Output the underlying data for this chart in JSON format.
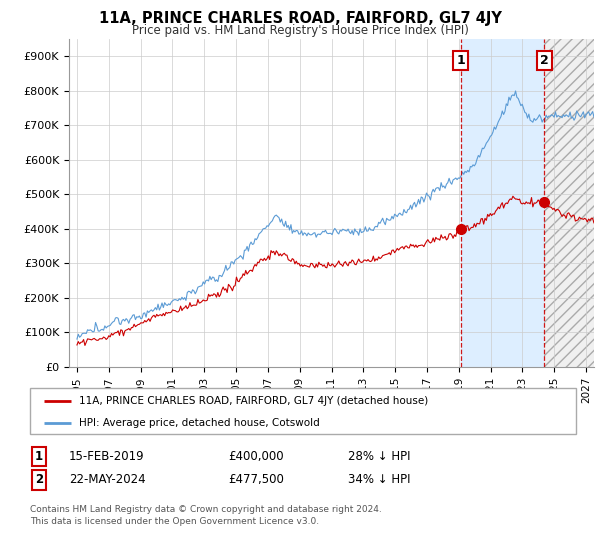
{
  "title": "11A, PRINCE CHARLES ROAD, FAIRFORD, GL7 4JY",
  "subtitle": "Price paid vs. HM Land Registry's House Price Index (HPI)",
  "ylabel_ticks": [
    "£0",
    "£100K",
    "£200K",
    "£300K",
    "£400K",
    "£500K",
    "£600K",
    "£700K",
    "£800K",
    "£900K"
  ],
  "ytick_values": [
    0,
    100000,
    200000,
    300000,
    400000,
    500000,
    600000,
    700000,
    800000,
    900000
  ],
  "ylim": [
    0,
    950000
  ],
  "xlim_left": 1994.5,
  "xlim_right": 2027.5,
  "hpi_color": "#5b9bd5",
  "price_color": "#cc0000",
  "marker1_date": 2019.12,
  "marker1_hpi": 550000,
  "marker1_price": 400000,
  "marker2_date": 2024.38,
  "marker2_hpi": 720000,
  "marker2_price": 477500,
  "shade1_color": "#ddeeff",
  "shade2_color": "#e8e8e8",
  "legend_label1": "11A, PRINCE CHARLES ROAD, FAIRFORD, GL7 4JY (detached house)",
  "legend_label2": "HPI: Average price, detached house, Cotswold",
  "table_row1": [
    "1",
    "15-FEB-2019",
    "£400,000",
    "28% ↓ HPI"
  ],
  "table_row2": [
    "2",
    "22-MAY-2024",
    "£477,500",
    "34% ↓ HPI"
  ],
  "footer": "Contains HM Land Registry data © Crown copyright and database right 2024.\nThis data is licensed under the Open Government Licence v3.0.",
  "bg_color": "#ffffff",
  "grid_color": "#cccccc"
}
